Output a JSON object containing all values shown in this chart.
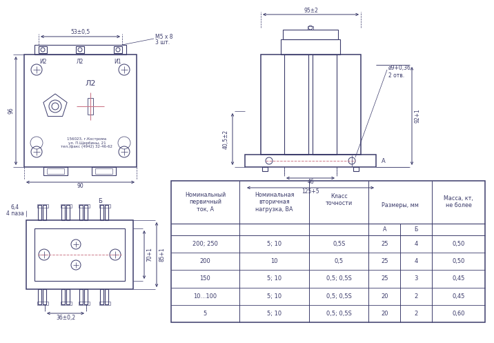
{
  "bg_color": "#ffffff",
  "line_color": "#3a3a6a",
  "dim_color": "#3a3a6a",
  "pink_color": "#cc7788",
  "table_rows": [
    [
      "5",
      "5; 10",
      "0,5; 0,5S",
      "20",
      "2",
      "0,60"
    ],
    [
      "10...100",
      "5; 10",
      "0,5; 0,5S",
      "20",
      "2",
      "0,45"
    ],
    [
      "150",
      "5; 10",
      "0,5; 0,5S",
      "25",
      "3",
      "0,45"
    ],
    [
      "200",
      "10",
      "0,5",
      "25",
      "4",
      "0,50"
    ],
    [
      "200; 250",
      "5; 10",
      "0,5S",
      "25",
      "4",
      "0,50"
    ]
  ],
  "front_view": {
    "label_И2": "И2",
    "label_Л2_top": "Л2",
    "label_И1": "И1",
    "label_Л2": "Л2",
    "company_text": "156023, г.Кострома\nул. П.Щербины, 21\nтел./факс (4942) 32-46-62",
    "dim_53": "53±0,5",
    "dim_96": "96",
    "dim_90": "90",
    "annot_M5": "М5 х 8",
    "annot_3sht": "3 шт."
  },
  "side_view": {
    "dim_95": "95±2",
    "dim_92": "92+1",
    "dim_40": "40,5±2",
    "dim_46": "46",
    "dim_125": "125+5",
    "annot_hole": "ø9+0,36",
    "annot_otv": "2 отв.",
    "label_A": "А"
  },
  "bottom_view": {
    "dim_64": "6,4",
    "label_4paza": "4 паза",
    "label_B": "Б",
    "dim_70": "70+1",
    "dim_85": "85+1",
    "dim_36": "36±0,2"
  },
  "table_h1": "Номинальный\nпервичный\nток, А",
  "table_h2": "Номинальная\nвторичная\nнагрузка, ВА",
  "table_h3": "Класс\nточности",
  "table_h4": "Размеры, мм",
  "table_hA": "А",
  "table_hB": "Б",
  "table_h5": "Масса, кт,\nне более"
}
